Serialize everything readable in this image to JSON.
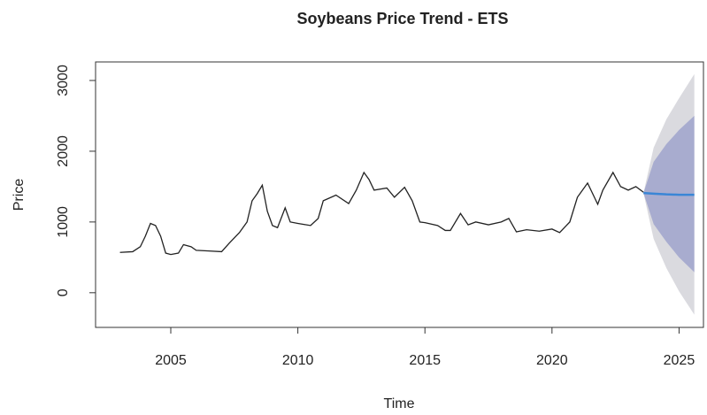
{
  "chart_data": {
    "type": "line",
    "title": "Soybeans Price Trend - ETS",
    "x_label": "Time",
    "y_label": "Price",
    "color": "#222222",
    "x": [
      2003.0,
      2003.5,
      2003.8,
      2004.0,
      2004.2,
      2004.4,
      2004.6,
      2004.8,
      2005.0,
      2005.3,
      2005.5,
      2005.8,
      2006.0,
      2006.5,
      2007.0,
      2007.3,
      2007.7,
      2008.0,
      2008.2,
      2008.4,
      2008.6,
      2008.8,
      2009.0,
      2009.2,
      2009.5,
      2009.7,
      2010.0,
      2010.5,
      2010.8,
      2011.0,
      2011.5,
      2012.0,
      2012.3,
      2012.6,
      2012.8,
      2013.0,
      2013.5,
      2013.8,
      2014.2,
      2014.5,
      2014.8,
      2015.0,
      2015.5,
      2015.8,
      2016.0,
      2016.4,
      2016.7,
      2017.0,
      2017.5,
      2018.0,
      2018.3,
      2018.6,
      2019.0,
      2019.5,
      2020.0,
      2020.3,
      2020.7,
      2021.0,
      2021.4,
      2021.8,
      2022.0,
      2022.4,
      2022.7,
      2023.0,
      2023.3,
      2023.6
    ],
    "values": [
      570,
      580,
      650,
      800,
      980,
      950,
      800,
      560,
      540,
      560,
      680,
      650,
      600,
      590,
      580,
      700,
      850,
      1000,
      1300,
      1400,
      1520,
      1150,
      950,
      920,
      1200,
      1000,
      980,
      950,
      1050,
      1300,
      1380,
      1260,
      1450,
      1700,
      1600,
      1450,
      1480,
      1350,
      1490,
      1300,
      1000,
      990,
      950,
      880,
      880,
      1120,
      960,
      1000,
      960,
      1000,
      1050,
      860,
      890,
      870,
      900,
      850,
      1000,
      1350,
      1550,
      1250,
      1450,
      1700,
      1500,
      1450,
      1500,
      1420
    ],
    "forecast": {
      "x": [
        2023.6,
        2024.0,
        2024.5,
        2025.0,
        2025.6
      ],
      "mean": [
        1410,
        1400,
        1390,
        1385,
        1385
      ],
      "lo80": [
        1410,
        970,
        720,
        500,
        290
      ],
      "hi80": [
        1410,
        1850,
        2100,
        2300,
        2500
      ],
      "lo95": [
        1410,
        760,
        350,
        20,
        -310
      ],
      "hi95": [
        1410,
        2050,
        2450,
        2750,
        3090
      ],
      "mean_color": "#3a86d6",
      "band80_color": "#a8accf",
      "band95_color": "#dadadf"
    },
    "xlim": [
      2002.04,
      2025.96
    ],
    "ylim": [
      -490,
      3262
    ],
    "xticks": [
      2005,
      2010,
      2015,
      2020,
      2025
    ],
    "yticks": [
      0,
      1000,
      2000,
      3000
    ]
  }
}
